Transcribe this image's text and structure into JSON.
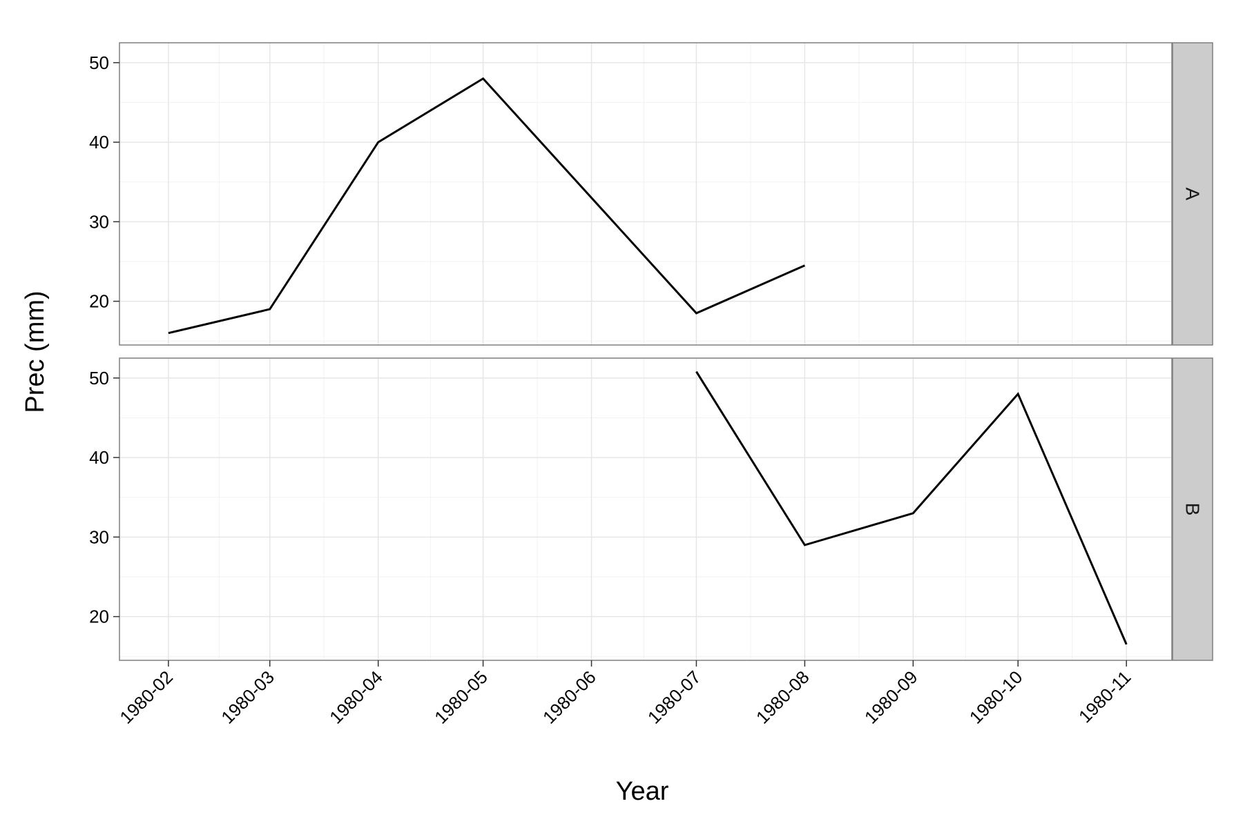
{
  "chart_data": {
    "type": "line",
    "layout": "facet-rows",
    "xlabel": "Year",
    "ylabel": "Prec (mm)",
    "x_ticks": [
      "1980-02",
      "1980-03",
      "1980-04",
      "1980-05",
      "1980-06",
      "1980-07",
      "1980-08",
      "1980-09",
      "1980-10",
      "1980-11"
    ],
    "xlim": [
      "1980-01-18",
      "1980-11-14"
    ],
    "ylim": [
      14.5,
      52.5
    ],
    "y_ticks": [
      20,
      30,
      40,
      50
    ],
    "grid": true,
    "line_color": "#000000",
    "panel_border_color": "#7f7f7f",
    "strip_fill": "#cccccc",
    "grid_major_color": "#e6e6e6",
    "grid_minor_color": "#f2f2f2",
    "panels": [
      {
        "label": "A",
        "x": [
          "1980-02-01",
          "1980-03-01",
          "1980-04-01",
          "1980-05-01",
          "1980-07-01",
          "1980-08-01"
        ],
        "y": [
          16,
          19,
          40,
          48,
          18.5,
          24.5
        ]
      },
      {
        "label": "B",
        "x": [
          "1980-07-01",
          "1980-08-01",
          "1980-09-01",
          "1980-10-01",
          "1980-11-01"
        ],
        "y": [
          50.8,
          29,
          33,
          48,
          16.5
        ]
      }
    ]
  }
}
